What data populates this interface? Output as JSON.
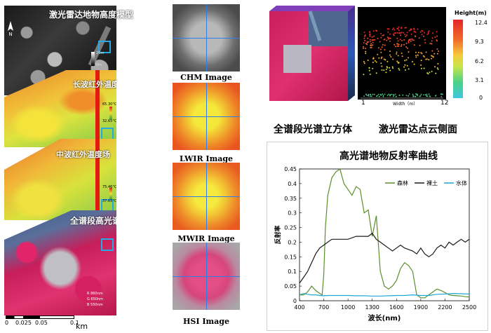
{
  "left_panels": {
    "lidar_title": "激光雷达地物高度模型",
    "lidar_legend": [
      "25m",
      "0m"
    ],
    "lwir_title": "长波红外温度场",
    "lwir_legend": [
      "65.30°C",
      "32.65°C"
    ],
    "mwir_title": "中波红外温度场",
    "mwir_legend": [
      "75.46°C",
      "37.65°C"
    ],
    "hsi_title": "全谱段高光谱",
    "hsi_bands": [
      "R 860nm",
      "G 650nm",
      "B 550nm"
    ],
    "north": "N",
    "scalebar": {
      "ticks": [
        "0",
        "0.025",
        "0.05",
        "0.1"
      ],
      "unit": "km"
    }
  },
  "middle_panels": {
    "chm": "CHM Image",
    "lwir": "LWIR Image",
    "mwir": "MWIR Image",
    "hsi": "HSI Image"
  },
  "right_top": {
    "cube_label": "全谱段光谱立方体",
    "pointcloud_label": "激光雷达点云侧面",
    "pointcloud": {
      "colorbar_title": "Height(m)",
      "colorbar_ticks": [
        "12.4",
        "9.3",
        "6.2",
        "3.1",
        "0"
      ],
      "x_start": "1",
      "x_end": "12",
      "xlabel": "Width（m）"
    }
  },
  "chart_data": {
    "type": "line",
    "title": "高光谱地物反射率曲线",
    "xlabel": "波长(nm)",
    "ylabel": "反射率",
    "xlim": [
      400,
      2500
    ],
    "ylim": [
      0,
      0.45
    ],
    "xticks": [
      400,
      700,
      1000,
      1300,
      1600,
      1900,
      2200,
      2500
    ],
    "yticks": [
      0,
      0.05,
      0.1,
      0.15,
      0.2,
      0.25,
      0.3,
      0.35,
      0.4,
      0.45
    ],
    "legend_position": "top-right",
    "series": [
      {
        "name": "森林",
        "color": "#5a8f2b",
        "x": [
          400,
          450,
          500,
          550,
          600,
          650,
          680,
          700,
          720,
          750,
          800,
          850,
          900,
          950,
          1000,
          1050,
          1100,
          1150,
          1200,
          1250,
          1300,
          1350,
          1400,
          1450,
          1500,
          1550,
          1600,
          1650,
          1700,
          1750,
          1800,
          1850,
          1900,
          1950,
          2000,
          2050,
          2100,
          2150,
          2200,
          2250,
          2300,
          2350,
          2400,
          2450,
          2500
        ],
        "y": [
          0.02,
          0.02,
          0.03,
          0.05,
          0.035,
          0.025,
          0.02,
          0.09,
          0.25,
          0.36,
          0.42,
          0.44,
          0.45,
          0.4,
          0.38,
          0.36,
          0.39,
          0.38,
          0.3,
          0.31,
          0.22,
          0.29,
          0.1,
          0.05,
          0.04,
          0.05,
          0.07,
          0.11,
          0.13,
          0.12,
          0.1,
          0.02,
          0.01,
          0.01,
          0.02,
          0.03,
          0.04,
          0.035,
          0.028,
          0.02,
          0.018,
          0.017,
          0.016,
          0.014,
          0.013
        ]
      },
      {
        "name": "裸土",
        "color": "#1a1a1a",
        "x": [
          400,
          450,
          500,
          550,
          600,
          650,
          700,
          750,
          800,
          900,
          1000,
          1100,
          1200,
          1250,
          1300,
          1350,
          1400,
          1450,
          1500,
          1550,
          1600,
          1650,
          1700,
          1750,
          1800,
          1850,
          1900,
          1950,
          2000,
          2050,
          2100,
          2150,
          2200,
          2250,
          2300,
          2350,
          2400,
          2450,
          2500
        ],
        "y": [
          0.06,
          0.08,
          0.1,
          0.13,
          0.16,
          0.18,
          0.19,
          0.2,
          0.21,
          0.21,
          0.21,
          0.22,
          0.22,
          0.22,
          0.23,
          0.21,
          0.2,
          0.19,
          0.18,
          0.17,
          0.18,
          0.19,
          0.18,
          0.175,
          0.17,
          0.16,
          0.18,
          0.16,
          0.15,
          0.16,
          0.18,
          0.19,
          0.18,
          0.2,
          0.19,
          0.2,
          0.21,
          0.2,
          0.21
        ]
      },
      {
        "name": "水体",
        "color": "#1fa8d6",
        "x": [
          400,
          450,
          500,
          550,
          600,
          650,
          700,
          750,
          800,
          900,
          1000,
          1100,
          1200,
          1300,
          1400,
          1500,
          1600,
          1700,
          1800,
          1900,
          2000,
          2100,
          2200,
          2300,
          2400,
          2500
        ],
        "y": [
          0.02,
          0.025,
          0.022,
          0.02,
          0.02,
          0.018,
          0.017,
          0.018,
          0.018,
          0.018,
          0.018,
          0.017,
          0.017,
          0.016,
          0.016,
          0.017,
          0.018,
          0.018,
          0.02,
          0.018,
          0.018,
          0.022,
          0.023,
          0.025,
          0.024,
          0.023
        ]
      }
    ]
  }
}
